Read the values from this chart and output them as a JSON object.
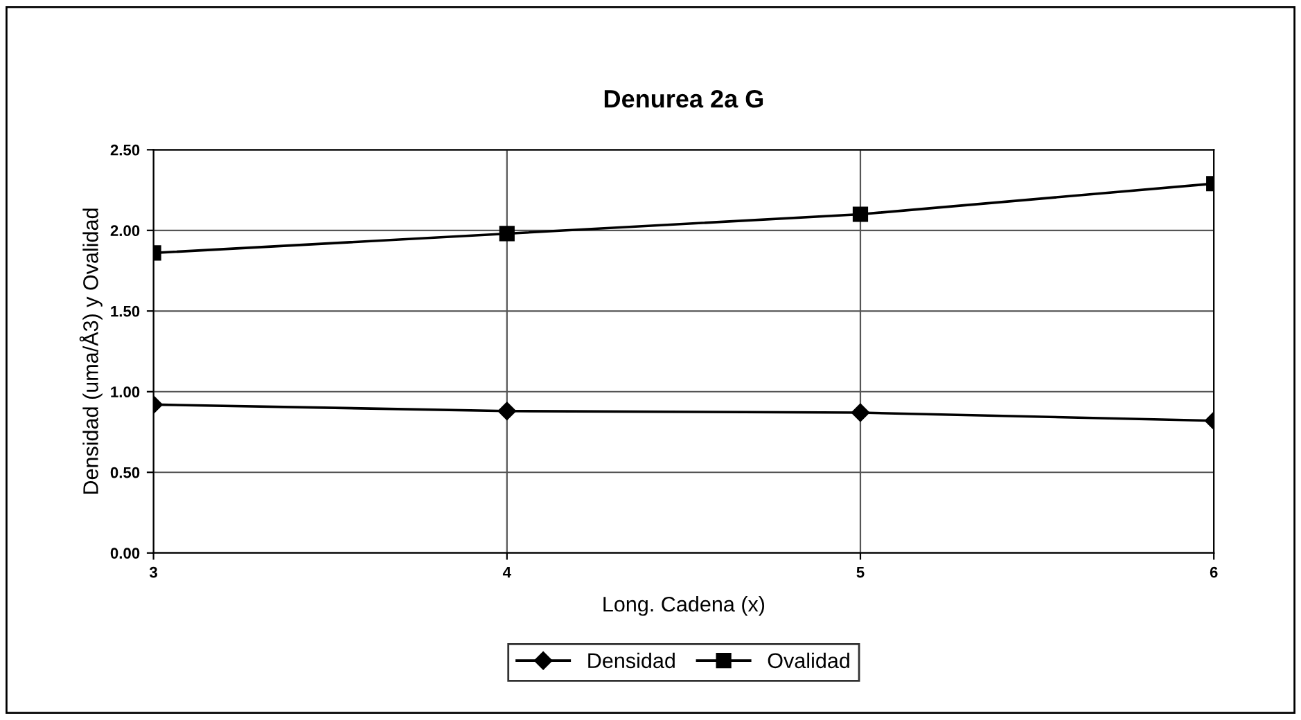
{
  "chart_data": {
    "type": "line",
    "title": "Denurea 2a G",
    "xlabel": "Long. Cadena (x)",
    "ylabel": "Densidad (uma/Å3) y Ovalidad",
    "x": [
      3,
      4,
      5,
      6
    ],
    "series": [
      {
        "name": "Densidad",
        "color": "#000000",
        "marker": "diamond",
        "values": [
          0.92,
          0.88,
          0.87,
          0.82
        ]
      },
      {
        "name": "Ovalidad",
        "color": "#000000",
        "marker": "square",
        "values": [
          1.86,
          1.98,
          2.1,
          2.29
        ]
      }
    ],
    "xlim": [
      3,
      6
    ],
    "xticks": [
      3,
      4,
      5,
      6
    ],
    "ylim": [
      0,
      2.5
    ],
    "yticks": [
      {
        "value": 0,
        "label": "0.00"
      },
      {
        "value": 0.5,
        "label": "0.50"
      },
      {
        "value": 1,
        "label": "1.00"
      },
      {
        "value": 1.5,
        "label": "1.50"
      },
      {
        "value": 2,
        "label": "2.00"
      },
      {
        "value": 2.5,
        "label": "2.50"
      }
    ],
    "grid": true,
    "legend": "bottom",
    "line_style": "solid"
  }
}
